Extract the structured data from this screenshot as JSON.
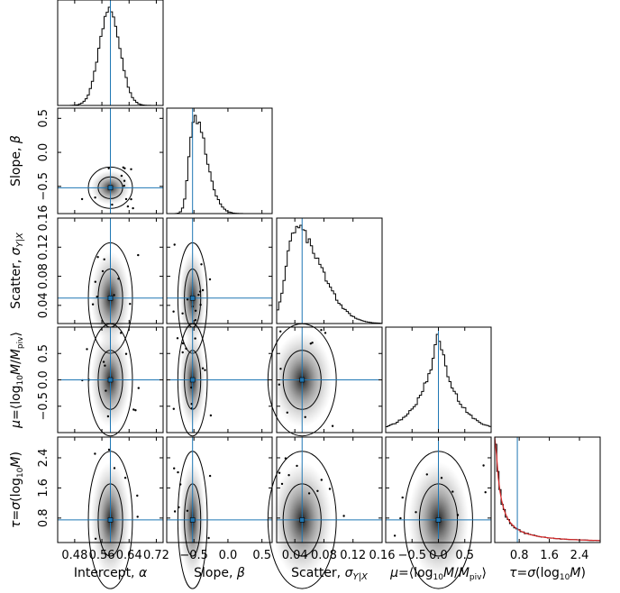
{
  "chart_data": {
    "type": "corner",
    "truth_color": "#1f77b4",
    "model_color": "#d62728",
    "parameters": [
      {
        "key": "alpha",
        "xlabel_html": "Intercept, <tspan font-style='italic'>α</tspan>",
        "ylabel_html": "",
        "range": [
          0.43,
          0.74
        ],
        "ticks": [
          0.48,
          0.56,
          0.64,
          0.72
        ],
        "tick_labels": [
          "0.48",
          "0.56",
          "0.64",
          "0.72"
        ],
        "truth": 0.585,
        "hist_center": 0.583,
        "hist_width": 0.03
      },
      {
        "key": "beta",
        "xlabel_html": "Slope, <tspan font-style='italic'>β</tspan>",
        "ylabel_html": "Slope, <tspan font-style='italic'>β</tspan>",
        "range": [
          -0.9,
          0.65
        ],
        "ticks": [
          -0.5,
          0.0,
          0.5
        ],
        "tick_labels": [
          "−0.5",
          "0.0",
          "0.5"
        ],
        "truth": -0.52,
        "hist_center": -0.5,
        "hist_width": 0.1
      },
      {
        "key": "sigma",
        "xlabel_html": "Scatter, <tspan font-style='italic'>σ</tspan><tspan font-size='10' dy='3'><tspan font-style='italic'>Y</tspan>|<tspan font-style='italic'>X</tspan></tspan>",
        "ylabel_html": "Scatter, <tspan font-style='italic'>σ</tspan><tspan font-size='10' dy='3'><tspan font-style='italic'>Y</tspan>|<tspan font-style='italic'>X</tspan></tspan>",
        "range": [
          0.015,
          0.16
        ],
        "ticks": [
          0.04,
          0.08,
          0.12,
          0.16
        ],
        "tick_labels": [
          "0.04",
          "0.08",
          "0.12",
          "0.16"
        ],
        "truth": 0.05,
        "hist_center": 0.04,
        "hist_width": 0.025
      },
      {
        "key": "mu",
        "xlabel_html": "<tspan font-style='italic'>μ</tspan>=⟨log<tspan font-size='9' dy='3'>10</tspan><tspan dy='-3' font-style='italic'>M</tspan>/<tspan font-style='italic'>M</tspan><tspan font-size='9' dy='3'>piv</tspan><tspan dy='-3'>⟩</tspan>",
        "ylabel_html": "<tspan font-style='italic'>μ</tspan>=⟨log<tspan font-size='9' dy='3'>10</tspan><tspan dy='-3' font-style='italic'>M</tspan>/<tspan font-style='italic'>M</tspan><tspan font-size='9' dy='3'>piv</tspan><tspan dy='-3'>⟩</tspan>",
        "range": [
          -1.0,
          1.0
        ],
        "ticks": [
          -0.5,
          0.0,
          0.5
        ],
        "tick_labels": [
          "−0.5",
          "0.0",
          "0.5"
        ],
        "truth": 0.0,
        "hist_center": 0.0,
        "hist_width": 0.35
      },
      {
        "key": "tau",
        "xlabel_html": "<tspan font-style='italic'>τ</tspan>=<tspan font-style='italic'>σ</tspan>(log<tspan font-size='9' dy='3'>10</tspan><tspan dy='-3' font-style='italic'>M</tspan>)",
        "ylabel_html": "<tspan font-style='italic'>τ</tspan>=<tspan font-style='italic'>σ</tspan>(log<tspan font-size='9' dy='3'>10</tspan><tspan dy='-3' font-style='italic'>M</tspan>)",
        "range": [
          0.15,
          2.95
        ],
        "ticks": [
          0.8,
          1.6,
          2.4
        ],
        "tick_labels": [
          "0.8",
          "1.6",
          "2.4"
        ],
        "truth": 0.75,
        "hist_center": 0.2,
        "hist_width": 0.6
      }
    ]
  }
}
